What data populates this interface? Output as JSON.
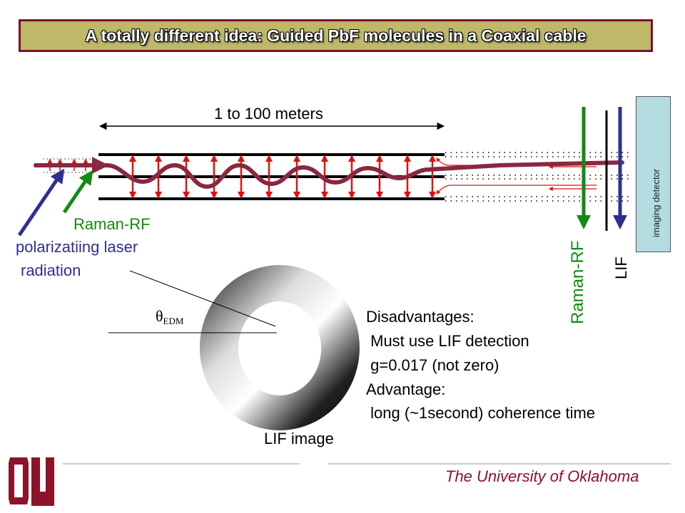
{
  "title": "A totally different idea: Guided PbF molecules in a Coaxial cable",
  "diagram": {
    "length_label": "1 to 100 meters",
    "raman_rf_left": "Raman-RF",
    "polarizing_line1": "polarizatiing laser",
    "polarizing_line2": "radiation",
    "raman_rf_right": "Raman-RF",
    "lif_right": "LIF",
    "detector_label": "imaging detector",
    "theta_symbol": "θ",
    "theta_subscript": "EDM",
    "lif_image_label": "LIF image"
  },
  "notes": {
    "line1": "Disadvantages:",
    "line2": " Must use LIF detection",
    "line3": " g=0.017 (not zero)",
    "line4": "Advantage:",
    "line5": " long (~1second) coherence time"
  },
  "footer": {
    "university": "The University of Oklahoma",
    "logo_letters": "OU"
  },
  "colors": {
    "title_bg": "#bfb869",
    "title_border": "#7a1226",
    "beam": "#8a2840",
    "field_arrow": "#e01010",
    "raman_green": "#138a12",
    "laser_blue": "#2e2f92",
    "detector_fill": "#b5dde1",
    "university_crimson": "#8e1228"
  }
}
